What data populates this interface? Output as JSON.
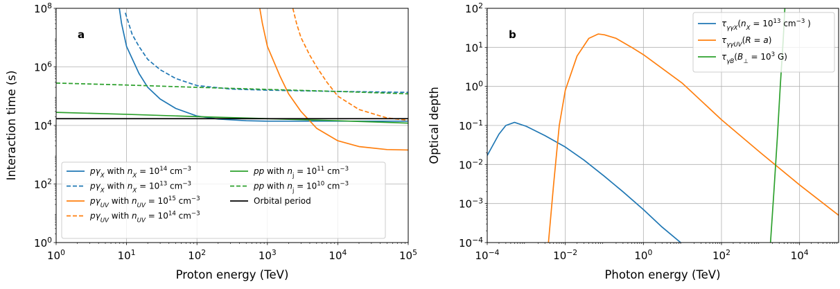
{
  "colors": {
    "blue": "#1f77b4",
    "orange": "#ff7f0e",
    "green": "#2ca02c",
    "black": "#000000"
  },
  "chart_data": [
    {
      "type": "line",
      "panel_label": "a",
      "xlabel": "Proton energy (TeV)",
      "ylabel": "Interaction time (s)",
      "xscale": "log",
      "yscale": "log",
      "xlim": [
        1,
        100000
      ],
      "ylim": [
        1,
        100000000
      ],
      "xticks": [
        {
          "v": 1,
          "b": "10",
          "e": "0"
        },
        {
          "v": 10,
          "b": "10",
          "e": "1"
        },
        {
          "v": 100,
          "b": "10",
          "e": "2"
        },
        {
          "v": 1000,
          "b": "10",
          "e": "3"
        },
        {
          "v": 10000,
          "b": "10",
          "e": "4"
        },
        {
          "v": 100000,
          "b": "10",
          "e": "5"
        }
      ],
      "yticks": [
        {
          "v": 1,
          "b": "10",
          "e": "0"
        },
        {
          "v": 100,
          "b": "10",
          "e": "2"
        },
        {
          "v": 10000,
          "b": "10",
          "e": "4"
        },
        {
          "v": 1000000,
          "b": "10",
          "e": "6"
        },
        {
          "v": 100000000,
          "b": "10",
          "e": "8"
        }
      ],
      "grid": true,
      "legend_position": "lower-left, two columns",
      "series": [
        {
          "key": "p1",
          "color": "blue",
          "dash": false,
          "legend": [
            [
              "p",
              true
            ],
            [
              "γ",
              true
            ],
            [
              "X",
              true,
              "sub"
            ],
            [
              " with ",
              false
            ],
            [
              "n",
              true
            ],
            [
              "X",
              true,
              "sub"
            ],
            [
              " = 10",
              false
            ],
            [
              "14",
              false,
              "sup"
            ],
            [
              " cm",
              false
            ],
            [
              "−3",
              false,
              "sup"
            ]
          ],
          "points": [
            [
              7.9,
              100000000
            ],
            [
              8.5,
              30000000
            ],
            [
              10,
              5000000
            ],
            [
              15,
              600000
            ],
            [
              20,
              200000
            ],
            [
              30,
              80000
            ],
            [
              50,
              38000
            ],
            [
              100,
              21000
            ],
            [
              200,
              16500
            ],
            [
              500,
              14500
            ],
            [
              1000,
              14000
            ],
            [
              10000,
              14000
            ],
            [
              100000,
              14000
            ]
          ]
        },
        {
          "key": "p2",
          "color": "blue",
          "dash": true,
          "legend": [
            [
              "p",
              true
            ],
            [
              "γ",
              true
            ],
            [
              "X",
              true,
              "sub"
            ],
            [
              " with ",
              false
            ],
            [
              "n",
              true
            ],
            [
              "X",
              true,
              "sub"
            ],
            [
              " = 10",
              false
            ],
            [
              "13",
              false,
              "sup"
            ],
            [
              " cm",
              false
            ],
            [
              "−3",
              false,
              "sup"
            ]
          ],
          "points": [
            [
              9.6,
              70000000
            ],
            [
              12,
              13000000
            ],
            [
              15,
              5000000
            ],
            [
              20,
              1800000
            ],
            [
              30,
              800000
            ],
            [
              50,
              400000
            ],
            [
              100,
              230000
            ],
            [
              300,
              175000
            ],
            [
              1000,
              160000
            ],
            [
              10000,
              145000
            ],
            [
              100000,
              135000
            ]
          ]
        },
        {
          "key": "p3",
          "color": "orange",
          "dash": false,
          "legend": [
            [
              "p",
              true
            ],
            [
              "γ",
              true
            ],
            [
              "UV",
              true,
              "sub"
            ],
            [
              " with ",
              false
            ],
            [
              "n",
              true
            ],
            [
              "UV",
              true,
              "sub"
            ],
            [
              " = 10",
              false
            ],
            [
              "15",
              false,
              "sup"
            ],
            [
              " cm",
              false
            ],
            [
              "−3",
              false,
              "sup"
            ]
          ],
          "points": [
            [
              780,
              100000000
            ],
            [
              850,
              30000000
            ],
            [
              1000,
              5000000
            ],
            [
              1500,
              500000
            ],
            [
              2000,
              120000
            ],
            [
              3000,
              30000
            ],
            [
              5000,
              8000
            ],
            [
              10000,
              3000
            ],
            [
              20000,
              1900
            ],
            [
              50000,
              1500
            ],
            [
              100000,
              1450
            ]
          ]
        },
        {
          "key": "p4",
          "color": "orange",
          "dash": true,
          "legend": [
            [
              "p",
              true
            ],
            [
              "γ",
              true
            ],
            [
              "UV",
              true,
              "sub"
            ],
            [
              " with ",
              false
            ],
            [
              "n",
              true
            ],
            [
              "UV",
              true,
              "sub"
            ],
            [
              " = 10",
              false
            ],
            [
              "14",
              false,
              "sup"
            ],
            [
              " cm",
              false
            ],
            [
              "−3",
              false,
              "sup"
            ]
          ],
          "points": [
            [
              2300,
              100000000
            ],
            [
              2600,
              30000000
            ],
            [
              3000,
              10000000
            ],
            [
              4000,
              2500000
            ],
            [
              5000,
              1000000
            ],
            [
              7000,
              300000
            ],
            [
              10000,
              100000
            ],
            [
              20000,
              35000
            ],
            [
              50000,
              18000
            ],
            [
              100000,
              15000
            ]
          ]
        },
        {
          "key": "p5",
          "color": "green",
          "dash": false,
          "legend": [
            [
              "pp",
              true
            ],
            [
              " with ",
              false
            ],
            [
              "n",
              true
            ],
            [
              "j",
              false,
              "sub"
            ],
            [
              " = 10",
              false
            ],
            [
              "11",
              false,
              "sup"
            ],
            [
              " cm",
              false
            ],
            [
              "−3",
              false,
              "sup"
            ]
          ],
          "points": [
            [
              1,
              28000
            ],
            [
              10,
              24000
            ],
            [
              100,
              20000
            ],
            [
              1000,
              17000
            ],
            [
              10000,
              14500
            ],
            [
              100000,
              12000
            ]
          ]
        },
        {
          "key": "p6",
          "color": "green",
          "dash": true,
          "legend": [
            [
              "pp",
              true
            ],
            [
              " with ",
              false
            ],
            [
              "n",
              true
            ],
            [
              "j",
              false,
              "sub"
            ],
            [
              " = 10",
              false
            ],
            [
              "10",
              false,
              "sup"
            ],
            [
              " cm",
              false
            ],
            [
              "−3",
              false,
              "sup"
            ]
          ],
          "points": [
            [
              1,
              280000
            ],
            [
              10,
              240000
            ],
            [
              100,
              200000
            ],
            [
              1000,
              170000
            ],
            [
              10000,
              145000
            ],
            [
              100000,
              120000
            ]
          ]
        },
        {
          "key": "p7",
          "color": "black",
          "dash": false,
          "legend": [
            [
              "Orbital period",
              false
            ]
          ],
          "points": [
            [
              1,
              17000
            ],
            [
              100000,
              17000
            ]
          ]
        }
      ]
    },
    {
      "type": "line",
      "panel_label": "b",
      "xlabel": "Photon energy (TeV)",
      "ylabel": "Optical depth",
      "xscale": "log",
      "yscale": "log",
      "xlim": [
        0.0001,
        100000
      ],
      "ylim": [
        0.0001,
        100
      ],
      "xticks": [
        {
          "v": 0.0001,
          "b": "10",
          "e": "−4"
        },
        {
          "v": 0.01,
          "b": "10",
          "e": "−2"
        },
        {
          "v": 1,
          "b": "10",
          "e": "0"
        },
        {
          "v": 100,
          "b": "10",
          "e": "2"
        },
        {
          "v": 10000,
          "b": "10",
          "e": "4"
        }
      ],
      "yticks": [
        {
          "v": 0.0001,
          "b": "10",
          "e": "−4"
        },
        {
          "v": 0.001,
          "b": "10",
          "e": "−3"
        },
        {
          "v": 0.01,
          "b": "10",
          "e": "−2"
        },
        {
          "v": 0.1,
          "b": "10",
          "e": "−1"
        },
        {
          "v": 1,
          "b": "10",
          "e": "0"
        },
        {
          "v": 10,
          "b": "10",
          "e": "1"
        },
        {
          "v": 100,
          "b": "10",
          "e": "2"
        }
      ],
      "grid": true,
      "legend_position": "top-right",
      "series": [
        {
          "key": "q1",
          "color": "blue",
          "dash": false,
          "legend": [
            [
              "τ",
              true
            ],
            [
              "γγX",
              true,
              "sub"
            ],
            [
              "(",
              false
            ],
            [
              "n",
              true
            ],
            [
              "X",
              true,
              "sub"
            ],
            [
              " = 10",
              false
            ],
            [
              "13",
              false,
              "sup"
            ],
            [
              " cm",
              false
            ],
            [
              "−3",
              false,
              "sup"
            ],
            [
              " )",
              false
            ]
          ],
          "points": [
            [
              0.0001,
              0.017
            ],
            [
              0.0002,
              0.06
            ],
            [
              0.0003,
              0.1
            ],
            [
              0.0005,
              0.12
            ],
            [
              0.001,
              0.095
            ],
            [
              0.003,
              0.055
            ],
            [
              0.01,
              0.028
            ],
            [
              0.03,
              0.013
            ],
            [
              0.1,
              0.005
            ],
            [
              0.3,
              0.002
            ],
            [
              1,
              0.0007
            ],
            [
              3,
              0.00025
            ],
            [
              9,
              0.0001
            ]
          ]
        },
        {
          "key": "q2",
          "color": "orange",
          "dash": false,
          "legend": [
            [
              "τ",
              true
            ],
            [
              "γγUV",
              true,
              "sub"
            ],
            [
              "(",
              false
            ],
            [
              "R",
              true
            ],
            [
              " = ",
              false
            ],
            [
              "a",
              true
            ],
            [
              ")",
              false
            ]
          ],
          "points": [
            [
              0.0037,
              0.0001
            ],
            [
              0.005,
              0.003
            ],
            [
              0.007,
              0.1
            ],
            [
              0.01,
              0.8
            ],
            [
              0.02,
              6
            ],
            [
              0.04,
              17
            ],
            [
              0.07,
              22
            ],
            [
              0.1,
              21
            ],
            [
              0.2,
              17
            ],
            [
              0.5,
              10
            ],
            [
              1,
              6.5
            ],
            [
              10,
              1.2
            ],
            [
              100,
              0.14
            ],
            [
              1000,
              0.02
            ],
            [
              10000,
              0.003
            ],
            [
              100000,
              0.0005
            ]
          ]
        },
        {
          "key": "q3",
          "color": "green",
          "dash": false,
          "legend": [
            [
              "τ",
              true
            ],
            [
              "γB",
              true,
              "sub"
            ],
            [
              "(",
              false
            ],
            [
              "B",
              true
            ],
            [
              "⊥",
              false,
              "sub"
            ],
            [
              " = 10",
              false
            ],
            [
              "3",
              false,
              "sup"
            ],
            [
              " G)",
              false
            ]
          ],
          "points": [
            [
              1800,
              0.0001
            ],
            [
              2200,
              0.002
            ],
            [
              2700,
              0.05
            ],
            [
              3200,
              1
            ],
            [
              3800,
              15
            ],
            [
              4200,
              100
            ]
          ]
        }
      ]
    }
  ]
}
